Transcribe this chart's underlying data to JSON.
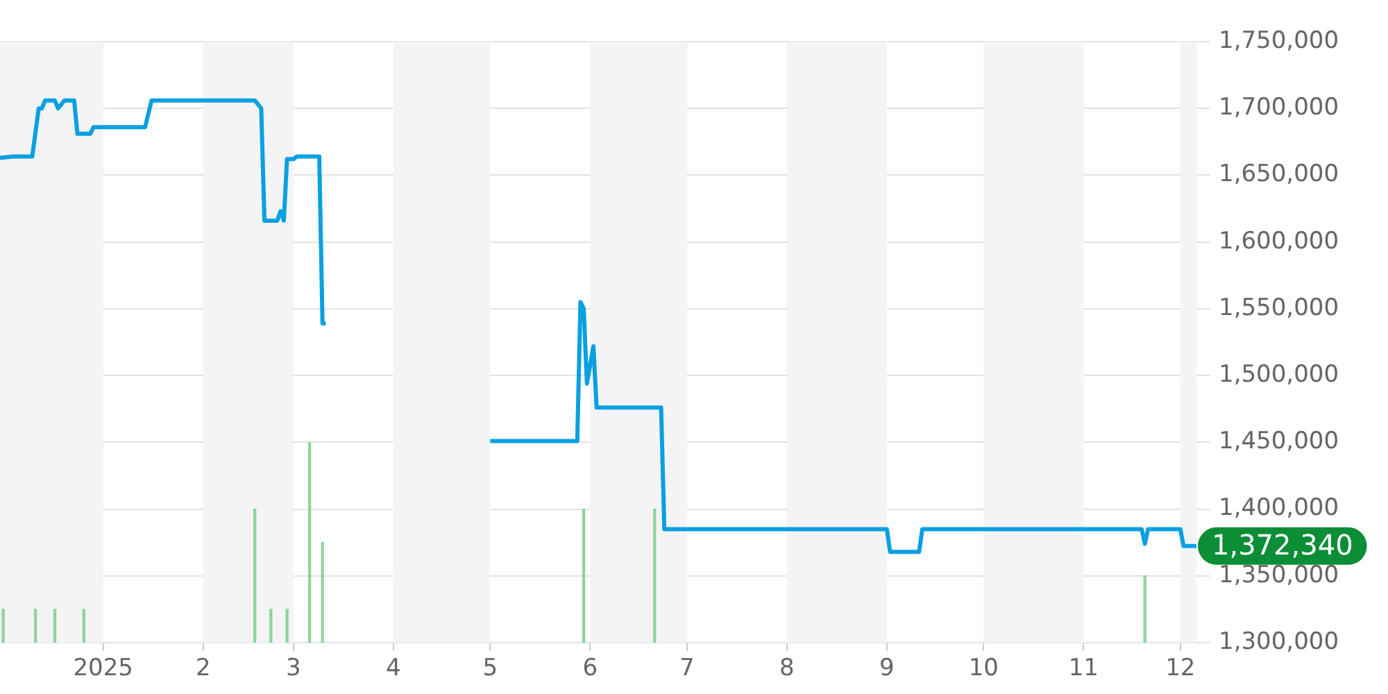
{
  "chart_data": {
    "type": "line",
    "xlim": [
      "2024-11-30",
      "2025-12-06"
    ],
    "ylim": [
      1300000,
      1750000
    ],
    "xticks": [
      {
        "value": "2025-01-01",
        "label": "2025"
      },
      {
        "value": "2025-02-01",
        "label": "2"
      },
      {
        "value": "2025-03-01",
        "label": "3"
      },
      {
        "value": "2025-04-01",
        "label": "4"
      },
      {
        "value": "2025-05-01",
        "label": "5"
      },
      {
        "value": "2025-06-01",
        "label": "6"
      },
      {
        "value": "2025-07-01",
        "label": "7"
      },
      {
        "value": "2025-08-01",
        "label": "8"
      },
      {
        "value": "2025-09-01",
        "label": "9"
      },
      {
        "value": "2025-10-01",
        "label": "10"
      },
      {
        "value": "2025-11-01",
        "label": "11"
      },
      {
        "value": "2025-12-01",
        "label": "12"
      }
    ],
    "yticks": [
      {
        "value": 1300000,
        "label": "1,300,000"
      },
      {
        "value": 1350000,
        "label": "1,350,000"
      },
      {
        "value": 1400000,
        "label": "1,400,000"
      },
      {
        "value": 1450000,
        "label": "1,450,000"
      },
      {
        "value": 1500000,
        "label": "1,500,000"
      },
      {
        "value": 1550000,
        "label": "1,550,000"
      },
      {
        "value": 1600000,
        "label": "1,600,000"
      },
      {
        "value": 1650000,
        "label": "1,650,000"
      },
      {
        "value": 1700000,
        "label": "1,700,000"
      },
      {
        "value": 1750000,
        "label": "1,750,000"
      }
    ],
    "grid": "y",
    "legend": false,
    "marker": "none",
    "bands": [
      {
        "axis": "x",
        "from": "2024-11-30",
        "to": "2025-01-01",
        "color": "#f4f4f4"
      },
      {
        "axis": "x",
        "from": "2025-02-01",
        "to": "2025-03-01",
        "color": "#f4f4f4"
      },
      {
        "axis": "x",
        "from": "2025-04-01",
        "to": "2025-05-01",
        "color": "#f4f4f4"
      },
      {
        "axis": "x",
        "from": "2025-06-01",
        "to": "2025-07-01",
        "color": "#f4f4f4"
      },
      {
        "axis": "x",
        "from": "2025-08-01",
        "to": "2025-09-01",
        "color": "#f4f4f4"
      },
      {
        "axis": "x",
        "from": "2025-10-01",
        "to": "2025-11-01",
        "color": "#f4f4f4"
      },
      {
        "axis": "x",
        "from": "2025-12-01",
        "to": "2025-12-06",
        "color": "#f4f4f4"
      }
    ],
    "annotations": [
      {
        "text": "1,372,340",
        "x": "2025-12-06",
        "y": 1372340
      }
    ],
    "series": [
      {
        "type": "bar",
        "color": "#8fd49a",
        "x": [
          "2024-12-01",
          "2024-12-11",
          "2024-12-17",
          "2024-12-26",
          "2025-02-17",
          "2025-02-22",
          "2025-02-27",
          "2025-03-06",
          "2025-03-10",
          "2025-05-30",
          "2025-06-21",
          "2025-11-20"
        ],
        "values": [
          1325000,
          1325000,
          1325000,
          1325000,
          1400000,
          1325000,
          1325000,
          1450000,
          1375000,
          1400000,
          1400000,
          1350000
        ]
      },
      {
        "color": "#0aa0e1",
        "x": [
          "2024-11-30",
          "2024-12-04",
          "2024-12-10",
          "2024-12-12",
          "2024-12-13",
          "2024-12-14",
          "2024-12-17",
          "2024-12-18",
          "2024-12-20",
          "2024-12-23",
          "2024-12-24",
          "2024-12-28",
          "2024-12-29",
          "2025-01-14",
          "2025-01-16",
          "2025-02-17",
          "2025-02-19",
          "2025-02-20",
          "2025-02-24",
          "2025-02-25",
          "2025-02-26",
          "2025-02-27",
          "2025-03-01",
          "2025-03-02",
          "2025-03-09",
          "2025-03-10",
          "2025-03-11",
          "2025-04-10",
          "2025-05-01",
          "2025-05-28",
          "2025-05-29",
          "2025-05-30",
          "2025-05-31",
          "2025-06-02",
          "2025-06-03",
          "2025-06-23",
          "2025-06-24",
          "2025-09-01",
          "2025-09-02",
          "2025-09-11",
          "2025-09-12",
          "2025-11-19",
          "2025-11-20",
          "2025-11-21",
          "2025-12-01",
          "2025-12-02",
          "2025-12-06"
        ],
        "values": [
          1663000,
          1664000,
          1664000,
          1700000,
          1700000,
          1706000,
          1706000,
          1700000,
          1706000,
          1706000,
          1681000,
          1681000,
          1686000,
          1686000,
          1706000,
          1706000,
          1700000,
          1616000,
          1616000,
          1623000,
          1616000,
          1662000,
          1662000,
          1664000,
          1664000,
          1539000,
          1539000,
          null,
          1451000,
          1451000,
          1555000,
          1550000,
          1494000,
          1522000,
          1476000,
          1476000,
          1385000,
          1385000,
          1368000,
          1368000,
          1385000,
          1385000,
          1374000,
          1385000,
          1385000,
          1372340,
          1372340
        ]
      }
    ]
  }
}
